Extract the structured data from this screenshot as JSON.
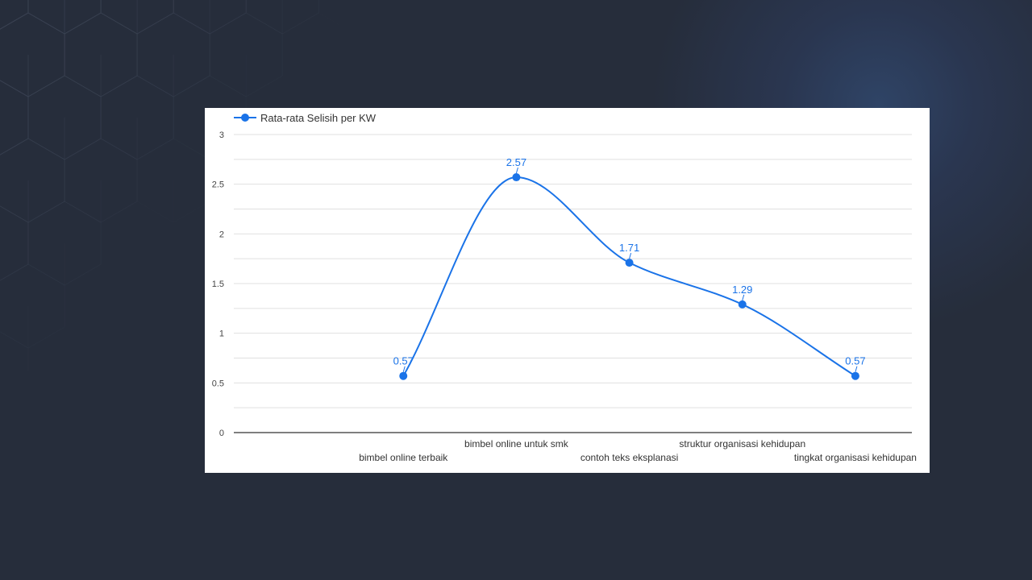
{
  "colors": {
    "page_background": "#262d3b",
    "card_background": "#ffffff",
    "series": "#1a73e8",
    "gridline": "#e0e0e0",
    "axis": "#333333",
    "text": "#444444"
  },
  "chart_data": {
    "type": "line",
    "smooth": true,
    "legend_position": "top-left",
    "grid": true,
    "ylim": [
      0,
      3
    ],
    "yticks": [
      0,
      0.5,
      1,
      1.5,
      2,
      2.5,
      3
    ],
    "ytick_labels": [
      "0",
      "0.5",
      "1",
      "1.5",
      "2",
      "2.5",
      "3"
    ],
    "categories": [
      "bimbel online terbaik",
      "bimbel online untuk smk",
      "contoh teks eksplanasi",
      "struktur organisasi kehidupan",
      "tingkat organisasi kehidupan"
    ],
    "series": [
      {
        "name": "Rata-rata Selisih per KW",
        "values": [
          0.57,
          2.57,
          1.71,
          1.29,
          0.57
        ],
        "data_labels": [
          "0.57",
          "2.57",
          "1.71",
          "1.29",
          "0.57"
        ]
      }
    ]
  }
}
